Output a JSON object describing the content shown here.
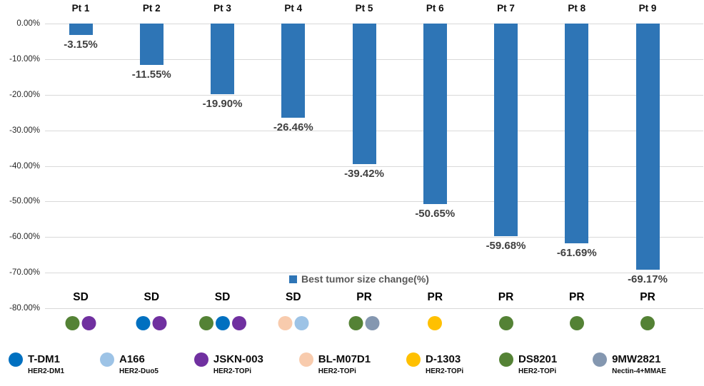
{
  "chart_data": {
    "type": "bar",
    "title": "",
    "series_label": "Best tumor size change(%)",
    "bar_color": "#2e75b6",
    "categories": [
      "Pt 1",
      "Pt 2",
      "Pt 3",
      "Pt 4",
      "Pt 5",
      "Pt 6",
      "Pt 7",
      "Pt 8",
      "Pt 9"
    ],
    "values": [
      -3.15,
      -11.55,
      -19.9,
      -26.46,
      -39.42,
      -50.65,
      -59.68,
      -61.69,
      -69.17
    ],
    "value_labels": [
      "-3.15%",
      "-11.55%",
      "-19.90%",
      "-26.46%",
      "-39.42%",
      "-50.65%",
      "-59.68%",
      "-61.69%",
      "-69.17%"
    ],
    "responses": [
      "SD",
      "SD",
      "SD",
      "SD",
      "PR",
      "PR",
      "PR",
      "PR",
      "PR"
    ],
    "treatments_per_patient": [
      [
        "DS8201",
        "JSKN-003"
      ],
      [
        "T-DM1",
        "JSKN-003"
      ],
      [
        "DS8201",
        "T-DM1",
        "JSKN-003"
      ],
      [
        "BL-M07D1",
        "A166"
      ],
      [
        "DS8201",
        "9MW2821"
      ],
      [
        "D-1303"
      ],
      [
        "DS8201"
      ],
      [
        "DS8201"
      ],
      [
        "DS8201"
      ]
    ],
    "y_ticks": [
      "0.00%",
      "-10.00%",
      "-20.00%",
      "-30.00%",
      "-40.00%",
      "-50.00%",
      "-60.00%",
      "-70.00%",
      "-80.00%"
    ],
    "ylim": [
      0,
      -80
    ],
    "grid": true,
    "legend_position": "bottom"
  },
  "drug_legend": [
    {
      "key": "T-DM1",
      "name": "T-DM1",
      "sub": "HER2-DM1",
      "color": "#0070c0"
    },
    {
      "key": "A166",
      "name": "A166",
      "sub": "HER2-Duo5",
      "color": "#9dc3e6"
    },
    {
      "key": "JSKN-003",
      "name": "JSKN-003",
      "sub": "HER2-TOPi",
      "color": "#7030a0"
    },
    {
      "key": "BL-M07D1",
      "name": "BL-M07D1",
      "sub": "HER2-TOPi",
      "color": "#f8cbad"
    },
    {
      "key": "D-1303",
      "name": "D-1303",
      "sub": "HER2-TOPi",
      "color": "#ffc000"
    },
    {
      "key": "DS8201",
      "name": "DS8201",
      "sub": "HER2-TOPi",
      "color": "#548235"
    },
    {
      "key": "9MW2821",
      "name": "9MW2821",
      "sub": "Nectin-4+MMAE",
      "color": "#8497b0"
    }
  ]
}
